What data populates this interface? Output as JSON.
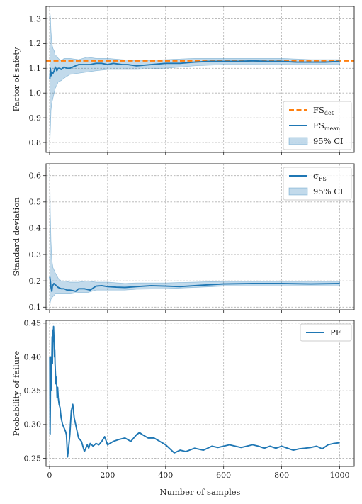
{
  "chart_data": [
    {
      "type": "line",
      "ylabel": "Factor of safety",
      "xlabel": "",
      "xlim": [
        -12,
        1050
      ],
      "ylim": [
        0.76,
        1.35
      ],
      "xticks": [
        0,
        200,
        400,
        600,
        800,
        1000
      ],
      "show_xtick_labels": false,
      "yticks": [
        0.8,
        0.9,
        1.0,
        1.1,
        1.2,
        1.3
      ],
      "ytick_labels": [
        "0.8",
        "0.9",
        "1.0",
        "1.1",
        "1.2",
        "1.3"
      ],
      "grid": true,
      "legend_position": "lower-right",
      "reference_line": {
        "name": "FS",
        "subscript": "det",
        "value": 1.13,
        "color": "#ff7f0e",
        "style": "dashed"
      },
      "series": [
        {
          "name": "FS",
          "subscript": "mean",
          "color": "#1f77b4",
          "x": [
            1,
            3,
            5,
            8,
            12,
            16,
            20,
            25,
            30,
            35,
            40,
            50,
            60,
            70,
            80,
            90,
            100,
            120,
            140,
            160,
            180,
            200,
            220,
            250,
            270,
            300,
            350,
            400,
            450,
            500,
            550,
            600,
            650,
            700,
            750,
            800,
            850,
            900,
            950,
            1000
          ],
          "y": [
            1.055,
            1.1,
            1.07,
            1.085,
            1.08,
            1.09,
            1.105,
            1.09,
            1.1,
            1.1,
            1.095,
            1.105,
            1.1,
            1.1,
            1.105,
            1.11,
            1.115,
            1.115,
            1.115,
            1.12,
            1.12,
            1.115,
            1.12,
            1.115,
            1.115,
            1.11,
            1.115,
            1.12,
            1.12,
            1.125,
            1.128,
            1.128,
            1.128,
            1.13,
            1.128,
            1.128,
            1.125,
            1.125,
            1.125,
            1.128
          ]
        }
      ],
      "band": {
        "name": "95% CI",
        "color": "#1f77b4",
        "x": [
          1,
          3,
          5,
          8,
          12,
          16,
          20,
          25,
          30,
          40,
          50,
          70,
          100,
          130,
          160,
          200,
          250,
          300,
          400,
          500,
          600,
          700,
          800,
          900,
          1000
        ],
        "lower": [
          0.79,
          0.85,
          0.93,
          0.96,
          0.98,
          1.0,
          1.02,
          1.03,
          1.045,
          1.05,
          1.06,
          1.075,
          1.08,
          1.085,
          1.09,
          1.095,
          1.095,
          1.095,
          1.1,
          1.11,
          1.115,
          1.115,
          1.115,
          1.115,
          1.115
        ],
        "upper": [
          1.33,
          1.31,
          1.25,
          1.2,
          1.18,
          1.17,
          1.15,
          1.15,
          1.14,
          1.13,
          1.14,
          1.14,
          1.135,
          1.145,
          1.14,
          1.14,
          1.135,
          1.13,
          1.135,
          1.14,
          1.14,
          1.14,
          1.14,
          1.135,
          1.135
        ]
      }
    },
    {
      "type": "line",
      "ylabel": "Standard deviation",
      "xlabel": "",
      "xlim": [
        -12,
        1050
      ],
      "ylim": [
        0.09,
        0.645
      ],
      "xticks": [
        0,
        200,
        400,
        600,
        800,
        1000
      ],
      "show_xtick_labels": false,
      "yticks": [
        0.1,
        0.2,
        0.3,
        0.4,
        0.5,
        0.6
      ],
      "ytick_labels": [
        "0.1",
        "0.2",
        "0.3",
        "0.4",
        "0.5",
        "0.6"
      ],
      "grid": true,
      "legend_position": "upper-right",
      "series": [
        {
          "name": "σ",
          "subscript": "FS",
          "color": "#1f77b4",
          "x": [
            1,
            3,
            5,
            8,
            10,
            15,
            20,
            25,
            30,
            40,
            50,
            60,
            70,
            80,
            90,
            100,
            120,
            140,
            160,
            180,
            200,
            230,
            260,
            300,
            350,
            400,
            450,
            500,
            550,
            600,
            700,
            800,
            900,
            1000
          ],
          "y": [
            0.215,
            0.2,
            0.175,
            0.16,
            0.18,
            0.19,
            0.185,
            0.18,
            0.175,
            0.17,
            0.17,
            0.165,
            0.165,
            0.163,
            0.16,
            0.17,
            0.17,
            0.165,
            0.18,
            0.182,
            0.178,
            0.176,
            0.175,
            0.178,
            0.182,
            0.18,
            0.178,
            0.182,
            0.185,
            0.188,
            0.19,
            0.19,
            0.188,
            0.19
          ]
        }
      ],
      "band": {
        "name": "95% CI",
        "color": "#1f77b4",
        "x": [
          1,
          3,
          5,
          8,
          12,
          16,
          20,
          25,
          30,
          40,
          50,
          70,
          100,
          130,
          160,
          200,
          260,
          300,
          400,
          500,
          600,
          700,
          800,
          900,
          1000
        ],
        "lower": [
          0.1,
          0.12,
          0.13,
          0.135,
          0.14,
          0.145,
          0.15,
          0.15,
          0.15,
          0.15,
          0.15,
          0.15,
          0.155,
          0.155,
          0.165,
          0.165,
          0.165,
          0.168,
          0.17,
          0.175,
          0.18,
          0.18,
          0.18,
          0.18,
          0.18
        ],
        "upper": [
          0.62,
          0.45,
          0.35,
          0.28,
          0.25,
          0.24,
          0.23,
          0.22,
          0.21,
          0.2,
          0.2,
          0.195,
          0.195,
          0.2,
          0.195,
          0.195,
          0.19,
          0.192,
          0.192,
          0.195,
          0.198,
          0.198,
          0.198,
          0.198,
          0.198
        ]
      }
    },
    {
      "type": "line",
      "ylabel": "Probability of failure",
      "xlabel": "Number of samples",
      "xlim": [
        -12,
        1050
      ],
      "ylim": [
        0.238,
        0.454
      ],
      "xticks": [
        0,
        200,
        400,
        600,
        800,
        1000
      ],
      "xtick_labels": [
        "0",
        "200",
        "400",
        "600",
        "800",
        "1000"
      ],
      "show_xtick_labels": true,
      "yticks": [
        0.25,
        0.3,
        0.35,
        0.4,
        0.45
      ],
      "ytick_labels": [
        "0.25",
        "0.30",
        "0.35",
        "0.40",
        "0.45"
      ],
      "grid": true,
      "legend_position": "upper-right",
      "series": [
        {
          "name": "PF",
          "color": "#1f77b4",
          "x": [
            1,
            2,
            3,
            4,
            5,
            6,
            7,
            8,
            9,
            10,
            11,
            12,
            13,
            14,
            15,
            16,
            17,
            18,
            19,
            20,
            21,
            22,
            24,
            26,
            28,
            30,
            33,
            36,
            40,
            45,
            50,
            55,
            58,
            60,
            62,
            65,
            70,
            75,
            80,
            85,
            90,
            95,
            100,
            110,
            120,
            130,
            135,
            140,
            150,
            160,
            170,
            180,
            190,
            200,
            220,
            240,
            260,
            280,
            300,
            310,
            320,
            340,
            360,
            380,
            400,
            420,
            430,
            440,
            450,
            470,
            500,
            530,
            560,
            580,
            600,
            620,
            640,
            660,
            680,
            700,
            720,
            740,
            760,
            780,
            800,
            820,
            840,
            860,
            880,
            900,
            920,
            940,
            960,
            980,
            1000
          ],
          "y": [
            0.4,
            0.286,
            0.33,
            0.4,
            0.35,
            0.38,
            0.36,
            0.4,
            0.43,
            0.39,
            0.42,
            0.44,
            0.43,
            0.445,
            0.43,
            0.42,
            0.4,
            0.41,
            0.39,
            0.38,
            0.37,
            0.36,
            0.37,
            0.34,
            0.355,
            0.34,
            0.33,
            0.325,
            0.31,
            0.3,
            0.295,
            0.29,
            0.285,
            0.27,
            0.252,
            0.262,
            0.285,
            0.32,
            0.33,
            0.31,
            0.3,
            0.29,
            0.28,
            0.275,
            0.26,
            0.27,
            0.265,
            0.272,
            0.268,
            0.272,
            0.27,
            0.275,
            0.282,
            0.27,
            0.275,
            0.278,
            0.28,
            0.275,
            0.285,
            0.288,
            0.285,
            0.28,
            0.28,
            0.275,
            0.27,
            0.262,
            0.258,
            0.26,
            0.262,
            0.26,
            0.265,
            0.262,
            0.268,
            0.266,
            0.268,
            0.27,
            0.268,
            0.266,
            0.268,
            0.27,
            0.268,
            0.265,
            0.268,
            0.265,
            0.268,
            0.265,
            0.262,
            0.264,
            0.265,
            0.266,
            0.268,
            0.264,
            0.27,
            0.272,
            0.273
          ]
        }
      ]
    }
  ]
}
